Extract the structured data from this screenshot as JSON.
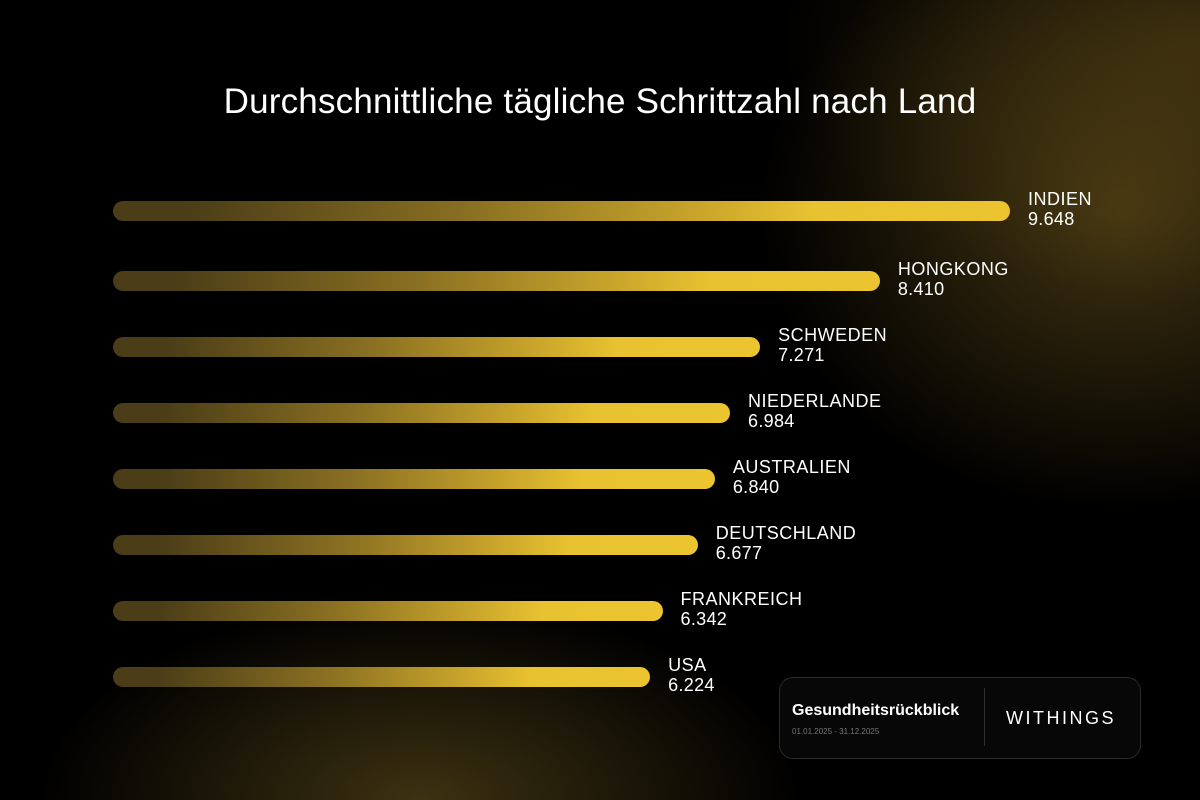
{
  "chart_data": {
    "type": "bar",
    "orientation": "horizontal",
    "title": "Durchschnittliche tägliche Schrittzahl nach Land",
    "categories": [
      "INDIEN",
      "HONGKONG",
      "SCHWEDEN",
      "NIEDERLANDE",
      "AUSTRALIEN",
      "DEUTSCHLAND",
      "FRANKREICH",
      "USA"
    ],
    "values": [
      9648,
      8410,
      7271,
      6984,
      6840,
      6677,
      6342,
      6224
    ],
    "value_labels": [
      "9.648",
      "8.410",
      "7.271",
      "6.984",
      "6.840",
      "6.677",
      "6.342",
      "6.224"
    ],
    "xlim": [
      1113,
      9648
    ],
    "grid": false,
    "xlabel": "",
    "ylabel": ""
  },
  "card": {
    "title": "Gesundheitsrückblick",
    "dates": "01.01.2025 - 31.12.2025",
    "brand": "WITHINGS"
  },
  "colors": {
    "bar_start": "#4a3d17",
    "bar_end": "#ebc430",
    "background": "#000000"
  }
}
